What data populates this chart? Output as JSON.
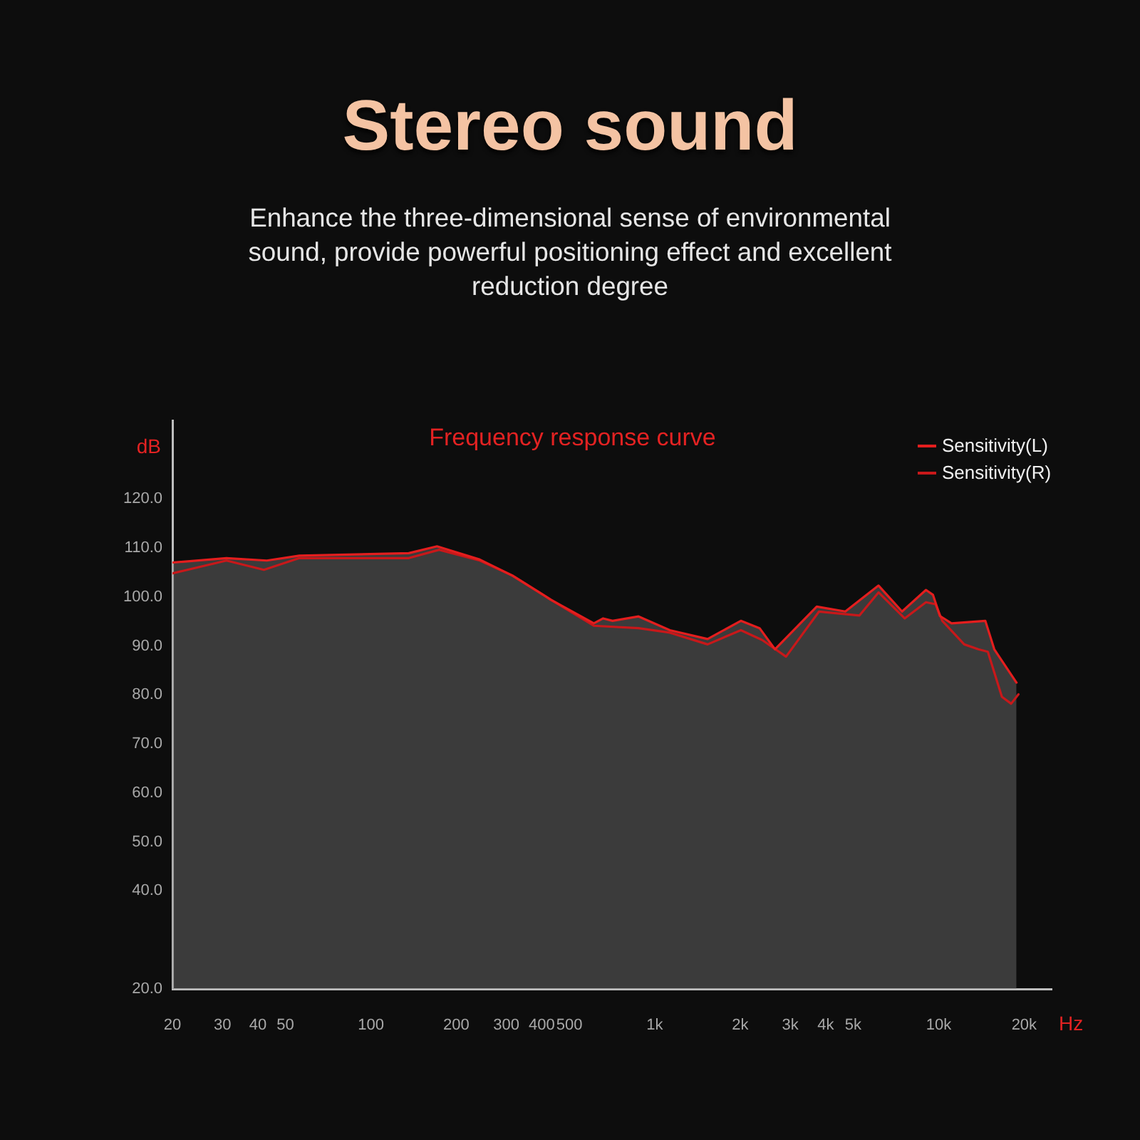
{
  "chart_data": {
    "type": "area",
    "title": "Stereo sound",
    "subtitle": "Enhance the three-dimensional sense of environmental sound, provide powerful positioning effect and excellent reduction degree",
    "annotations": [
      "Frequency response curve"
    ],
    "xlabel": "Hz",
    "ylabel": "dB",
    "xlim": [
      20,
      25000
    ],
    "ylim": [
      20,
      136
    ],
    "xticks": [
      20,
      30,
      40,
      50,
      100,
      200,
      300,
      400,
      500,
      {
        "value": 1000,
        "label": "1k"
      },
      {
        "value": 2000,
        "label": "2k"
      },
      {
        "value": 3000,
        "label": "3k"
      },
      {
        "value": 4000,
        "label": "4k"
      },
      {
        "value": 5000,
        "label": "5k"
      },
      {
        "value": 10000,
        "label": "10k"
      },
      {
        "value": 20000,
        "label": "20k"
      }
    ],
    "yticks": [
      {
        "value": 20,
        "label": "20.0"
      },
      {
        "value": 40,
        "label": "40.0"
      },
      {
        "value": 50,
        "label": "50.0"
      },
      {
        "value": 60,
        "label": "60.0"
      },
      {
        "value": 70,
        "label": "70.0"
      },
      {
        "value": 80,
        "label": "80.0"
      },
      {
        "value": 90,
        "label": "90.0"
      },
      {
        "value": 100,
        "label": "100.0"
      },
      {
        "value": 110,
        "label": "110.0"
      },
      {
        "value": 120,
        "label": "120.0"
      }
    ],
    "log": "x",
    "grid": false,
    "legend": "top right",
    "marker": "none",
    "line_style": "solid",
    "series": [
      {
        "name": "Sensitivity(L)",
        "color": "#e41e1e",
        "x": [
          20,
          31,
          43,
          56,
          136,
          171,
          242,
          316,
          431,
          610,
          658,
          710,
          877,
          1130,
          1535,
          2010,
          2340,
          2650,
          3720,
          4690,
          6140,
          7430,
          9020,
          9550,
          10100,
          11100,
          14600,
          15700,
          18800
        ],
        "values": [
          107.0,
          107.9,
          107.4,
          108.4,
          108.9,
          110.3,
          107.6,
          104.3,
          99.4,
          94.6,
          95.6,
          95.1,
          96.0,
          93.2,
          91.4,
          95.1,
          93.6,
          89.3,
          98.0,
          97.0,
          102.3,
          97.0,
          101.4,
          100.4,
          96.1,
          94.6,
          95.1,
          89.3,
          82.5
        ]
      },
      {
        "name": "Sensitivity(R)",
        "type": "line",
        "color": "#c8181a",
        "x": [
          20,
          31,
          42,
          56,
          136,
          174,
          242,
          316,
          431,
          610,
          877,
          1130,
          1535,
          2010,
          2390,
          2900,
          3790,
          5260,
          6140,
          7590,
          9020,
          9750,
          10300,
          12300,
          13800,
          14900,
          16700,
          18000,
          19100
        ],
        "values": [
          104.8,
          107.4,
          105.5,
          107.9,
          107.9,
          109.6,
          107.4,
          104.3,
          99.4,
          94.1,
          93.6,
          92.7,
          90.3,
          93.2,
          91.2,
          87.8,
          97.0,
          96.2,
          100.9,
          95.6,
          98.9,
          98.5,
          95.1,
          90.3,
          89.3,
          88.8,
          79.6,
          78.2,
          80.1
        ]
      }
    ]
  }
}
